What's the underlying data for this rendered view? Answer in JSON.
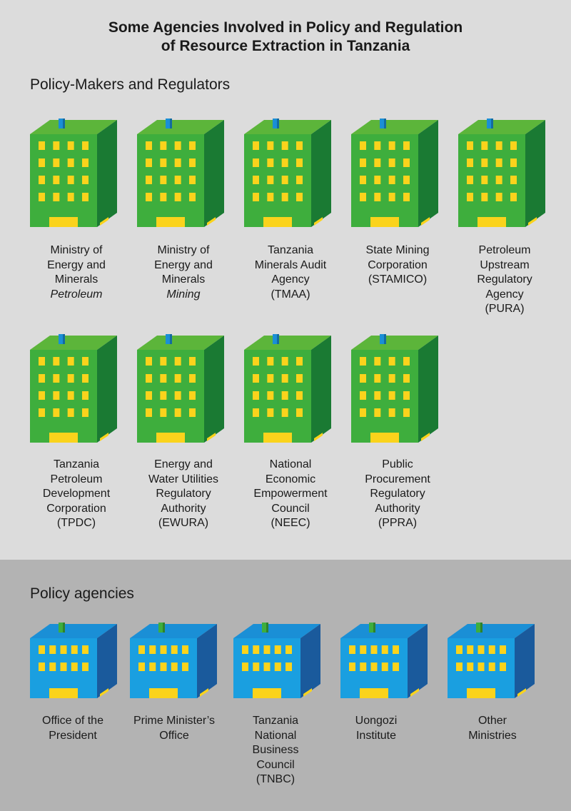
{
  "title": {
    "line1": "Some Agencies Involved in Policy and Regulation",
    "line2": "of Resource Extraction in Tanzania"
  },
  "sections": {
    "regulators": {
      "heading": "Policy-Makers and Regulators",
      "building_colors": {
        "front": "#3eae3d",
        "top": "#5cb53a",
        "side": "#1a7a33",
        "window": "#fad31c",
        "roof_box": "#1a8fd6"
      },
      "agencies": [
        {
          "lines": [
            "Ministry of",
            "Energy and",
            "Minerals"
          ],
          "italic": "Petroleum"
        },
        {
          "lines": [
            "Ministry of",
            "Energy and",
            "Minerals"
          ],
          "italic": "Mining"
        },
        {
          "lines": [
            "Tanzania",
            "Minerals Audit",
            "Agency",
            "(TMAA)"
          ]
        },
        {
          "lines": [
            "State Mining",
            "Corporation",
            "(STAMICO)"
          ]
        },
        {
          "lines": [
            "Petroleum",
            "Upstream",
            "Regulatory",
            "Agency",
            "(PURA)"
          ]
        },
        {
          "lines": [
            "Tanzania",
            "Petroleum",
            "Development",
            "Corporation",
            "(TPDC)"
          ]
        },
        {
          "lines": [
            "Energy and",
            "Water Utilities",
            "Regulatory",
            "Authority",
            "(EWURA)"
          ]
        },
        {
          "lines": [
            "National",
            "Economic",
            "Empowerment",
            "Council",
            "(NEEC)"
          ]
        },
        {
          "lines": [
            "Public",
            "Procurement",
            "Regulatory",
            "Authority",
            "(PPRA)"
          ]
        }
      ]
    },
    "policy": {
      "heading": "Policy agencies",
      "building_colors": {
        "front": "#1a9fe0",
        "top": "#1a8fd6",
        "side": "#1a5a9c",
        "window": "#fad31c",
        "roof_box": "#3eae3d"
      },
      "agencies": [
        {
          "lines": [
            "Office of the",
            "President"
          ]
        },
        {
          "lines": [
            "Prime Minister’s",
            "Office"
          ]
        },
        {
          "lines": [
            "Tanzania",
            "National",
            "Business",
            "Council",
            "(TNBC)"
          ]
        },
        {
          "lines": [
            "Uongozi",
            "Institute"
          ]
        },
        {
          "lines": [
            "Other",
            "Ministries"
          ]
        }
      ]
    }
  }
}
